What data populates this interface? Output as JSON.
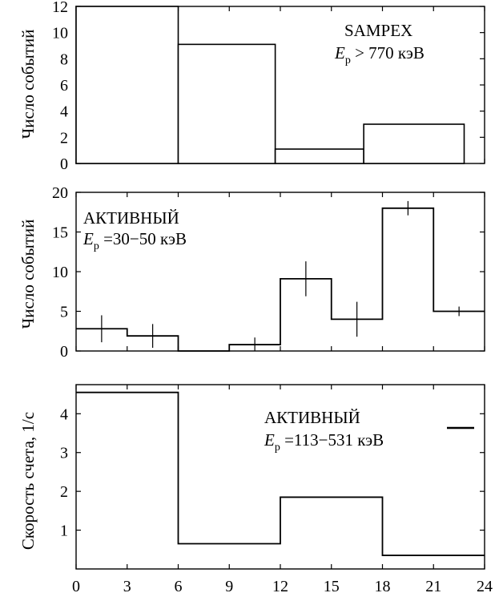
{
  "chart_data": [
    {
      "type": "bar",
      "ylabel": "Число событий",
      "ylim": [
        0,
        12
      ],
      "yticks": [
        0,
        2,
        4,
        6,
        8,
        10,
        12
      ],
      "xlim": [
        0,
        24
      ],
      "legend": {
        "name": "SAMPEX",
        "line2_symbol": "E",
        "line2_sub": "p",
        "line2_rest": " > 770  кэВ"
      },
      "bins": [
        {
          "x0": 0,
          "x1": 6,
          "value": 12
        },
        {
          "x0": 6,
          "x1": 11.7,
          "value": 9.1
        },
        {
          "x0": 11.7,
          "x1": 16.9,
          "value": 1.1
        },
        {
          "x0": 16.9,
          "x1": 22.8,
          "value": 3
        }
      ]
    },
    {
      "type": "line",
      "ylabel": "Число событий",
      "ylim": [
        0,
        20
      ],
      "yticks": [
        0,
        5,
        10,
        15,
        20
      ],
      "xlim": [
        0,
        24
      ],
      "legend": {
        "name": "АКТИВНЫЙ",
        "line2_symbol": "E",
        "line2_sub": "p",
        "line2_rest": " =30−50 кэВ"
      },
      "bins": [
        {
          "x0": 0,
          "x1": 3,
          "value": 2.8,
          "err": 1.7
        },
        {
          "x0": 3,
          "x1": 6,
          "value": 1.9,
          "err": 1.5
        },
        {
          "x0": 6,
          "x1": 9,
          "value": 0,
          "err": 0
        },
        {
          "x0": 9,
          "x1": 12,
          "value": 0.8,
          "err": 0.9
        },
        {
          "x0": 12,
          "x1": 15,
          "value": 9.1,
          "err": 2.2
        },
        {
          "x0": 15,
          "x1": 18,
          "value": 4,
          "err": 2.2
        },
        {
          "x0": 18,
          "x1": 21,
          "value": 18,
          "err": 0.9
        },
        {
          "x0": 21,
          "x1": 24,
          "value": 5,
          "err": 0.6
        }
      ]
    },
    {
      "type": "line",
      "ylabel": "Скорость счета,  1/c",
      "ylim": [
        0,
        4.75
      ],
      "yticks": [
        1,
        2,
        3,
        4
      ],
      "xlim": [
        0,
        24
      ],
      "xticks": [
        0,
        3,
        6,
        9,
        12,
        15,
        18,
        21,
        24
      ],
      "legend": {
        "name": "АКТИВНЫЙ",
        "line2_symbol": "E",
        "line2_sub": "p",
        "line2_rest": " =113−531  кэВ"
      },
      "bins": [
        {
          "x0": 0,
          "x1": 6,
          "value": 4.55
        },
        {
          "x0": 6,
          "x1": 12,
          "value": 0.65
        },
        {
          "x0": 12,
          "x1": 18,
          "value": 1.85
        },
        {
          "x0": 18,
          "x1": 24,
          "value": 0.35
        }
      ]
    }
  ]
}
